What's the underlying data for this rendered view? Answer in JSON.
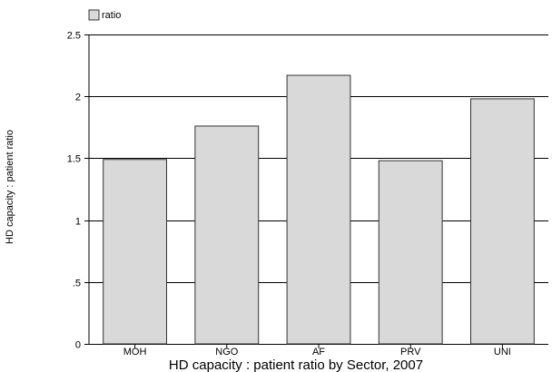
{
  "chart_data": {
    "type": "bar",
    "title": "HD capacity : patient ratio by Sector, 2007",
    "xlabel": "",
    "ylabel": "HD capacity : patient ratio",
    "categories": [
      "MOH",
      "NGO",
      "AF",
      "PRV",
      "UNI"
    ],
    "series": [
      {
        "name": "ratio",
        "values": [
          1.49,
          1.76,
          2.17,
          1.48,
          1.98
        ]
      }
    ],
    "ylim": [
      0,
      2.5
    ],
    "yticks": [
      0,
      0.5,
      1,
      1.5,
      2,
      2.5
    ],
    "ytick_labels": [
      "0",
      ".5",
      "1",
      "1.5",
      "2",
      "2.5"
    ],
    "grid": true,
    "legend_position": "top-left",
    "colors": {
      "bar_fill": "#d9d9d9",
      "bar_stroke": "#333333",
      "grid": "#000000",
      "axis": "#000000"
    }
  }
}
